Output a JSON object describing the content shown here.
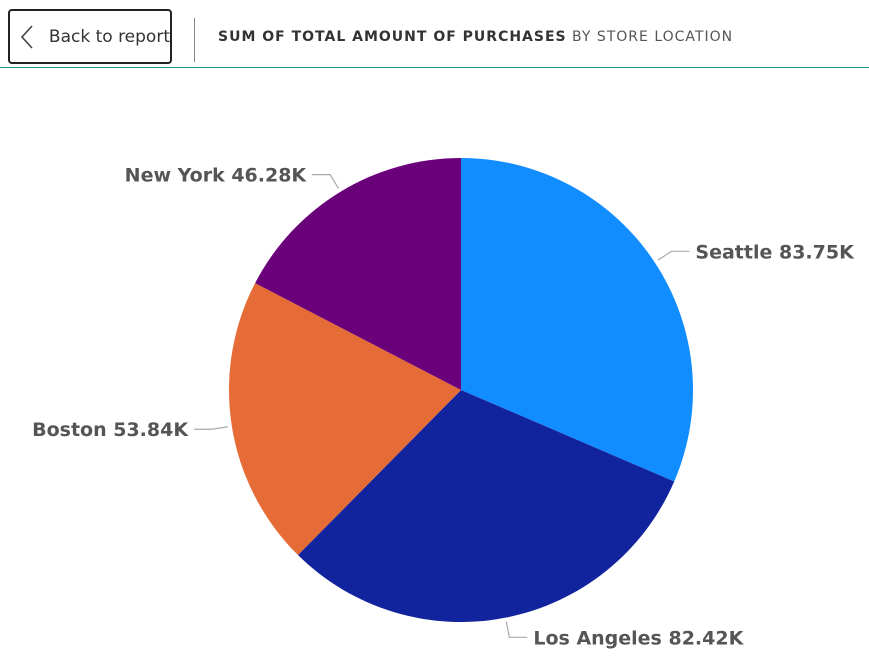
{
  "header": {
    "back_label": "Back to report",
    "title": "SUM OF TOTAL AMOUNT OF PURCHASES",
    "subtitle": "BY STORE LOCATION"
  },
  "colors": {
    "accent_line": "#1a8d84"
  },
  "chart_data": {
    "type": "pie",
    "title": "SUM OF TOTAL AMOUNT OF PURCHASES",
    "subtitle": "BY STORE LOCATION",
    "slices": [
      {
        "name": "Seattle",
        "value": 83.75,
        "display": "83.75K",
        "color": "#118DFF"
      },
      {
        "name": "Los Angeles",
        "value": 82.42,
        "display": "82.42K",
        "color": "#12239E"
      },
      {
        "name": "Boston",
        "value": 53.84,
        "display": "53.84K",
        "color": "#E66C37"
      },
      {
        "name": "New York",
        "value": 46.28,
        "display": "46.28K",
        "color": "#6B007B"
      }
    ],
    "start": "top",
    "direction": "clockwise"
  }
}
